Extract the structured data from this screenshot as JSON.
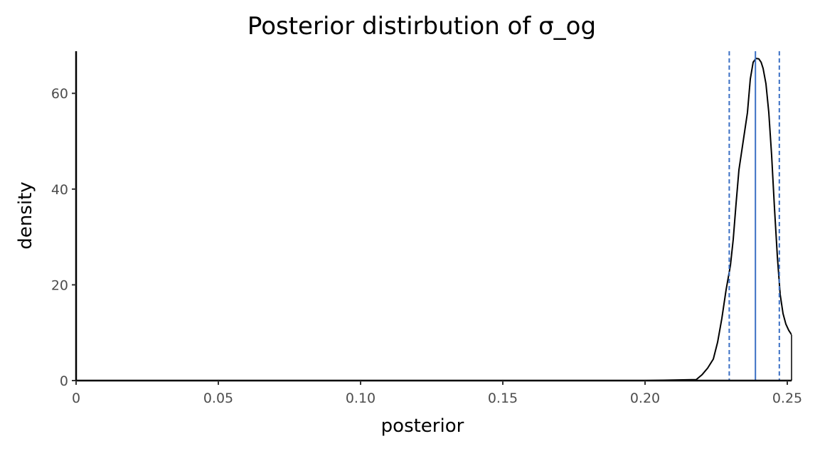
{
  "chart_data": {
    "type": "area",
    "title": "Posterior distirbution of σ_og",
    "xlabel": "posterior",
    "ylabel": "density",
    "xlim": [
      0,
      0.2515
    ],
    "ylim": [
      0,
      68.8
    ],
    "x_ticks": [
      0,
      0.05,
      0.1,
      0.15,
      0.2,
      0.25
    ],
    "x_tick_labels": [
      "0",
      "0.05",
      "0.10",
      "0.15",
      "0.20",
      "0.25"
    ],
    "y_ticks": [
      0,
      20,
      40,
      60
    ],
    "y_tick_labels": [
      "0",
      "20",
      "40",
      "60"
    ],
    "grid": false,
    "series": [
      {
        "x": [
          0,
          0.2,
          0.218,
          0.22,
          0.222,
          0.224,
          0.2255,
          0.227,
          0.2285,
          0.23,
          0.231,
          0.232,
          0.233,
          0.234,
          0.235,
          0.236,
          0.237,
          0.238,
          0.239,
          0.24,
          0.2408,
          0.2415,
          0.2425,
          0.2435,
          0.2445,
          0.2455,
          0.2465,
          0.2475,
          0.2485,
          0.2495,
          0.2505,
          0.2515
        ],
        "y": [
          0,
          0,
          0.2,
          1.2,
          2.6,
          4.5,
          8.0,
          13.0,
          19.0,
          24.0,
          29.5,
          37.0,
          44.0,
          48.0,
          52.0,
          56.0,
          63.0,
          66.5,
          67.3,
          67.2,
          66.5,
          65.2,
          62.0,
          56.0,
          47.0,
          36.0,
          26.0,
          18.0,
          14.0,
          11.8,
          10.5,
          9.6
        ]
      }
    ],
    "mean_line": 0.2388,
    "interval_lines": [
      0.2296,
      0.2472
    ],
    "line_color": "#000000",
    "reference_line_color": "#3a6fc4"
  }
}
